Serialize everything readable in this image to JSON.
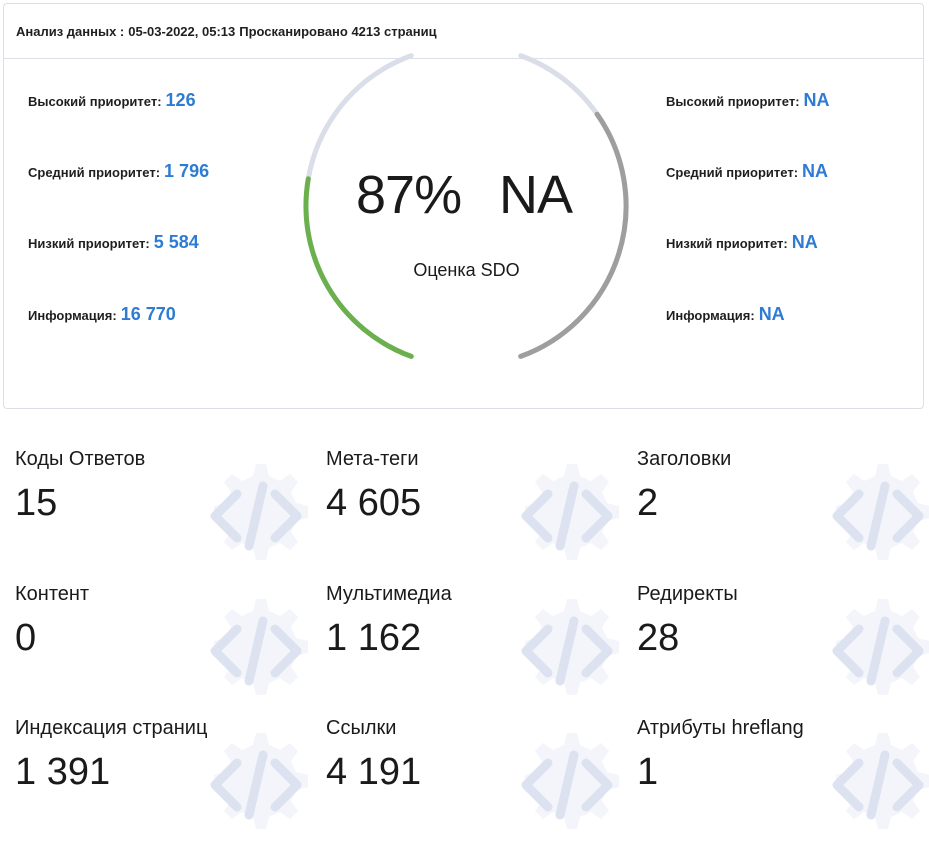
{
  "header": {
    "analysis_label": "Анализ данных :",
    "datetime": "05-03-2022, 05:13",
    "scanned": "Просканировано 4213 страниц"
  },
  "left_priorities": [
    {
      "label": "Высокий приоритет:",
      "value": "126"
    },
    {
      "label": "Средний приоритет:",
      "value": "1 796"
    },
    {
      "label": "Низкий приоритет:",
      "value": "5 584"
    },
    {
      "label": "Информация:",
      "value": "16 770"
    }
  ],
  "right_priorities": [
    {
      "label": "Высокий приоритет:",
      "value": "NA"
    },
    {
      "label": "Средний приоритет:",
      "value": "NA"
    },
    {
      "label": "Низкий приоритет:",
      "value": "NA"
    },
    {
      "label": "Информация:",
      "value": "NA"
    }
  ],
  "score": {
    "left_value": "87%",
    "right_value": "NA",
    "label": "Оценка SDO",
    "left_fill_fraction": 0.87,
    "left_color": "#6ab04c",
    "right_color": "#9e9e9e",
    "track_color": "#d9dee8"
  },
  "tiles": [
    {
      "label": "Коды Ответов",
      "value": "15"
    },
    {
      "label": "Мета-теги",
      "value": "4 605"
    },
    {
      "label": "Заголовки",
      "value": "2"
    },
    {
      "label": "Контент",
      "value": "0"
    },
    {
      "label": "Мультимедиа",
      "value": "1 162"
    },
    {
      "label": "Редиректы",
      "value": "28"
    },
    {
      "label": "Индексация страниц",
      "value": "1 391"
    },
    {
      "label": "Ссылки",
      "value": "4 191"
    },
    {
      "label": "Атрибуты hreflang",
      "value": "1"
    }
  ],
  "colors": {
    "accent_value": "#2e7bd4",
    "tile_icon": "#dde2f0"
  }
}
